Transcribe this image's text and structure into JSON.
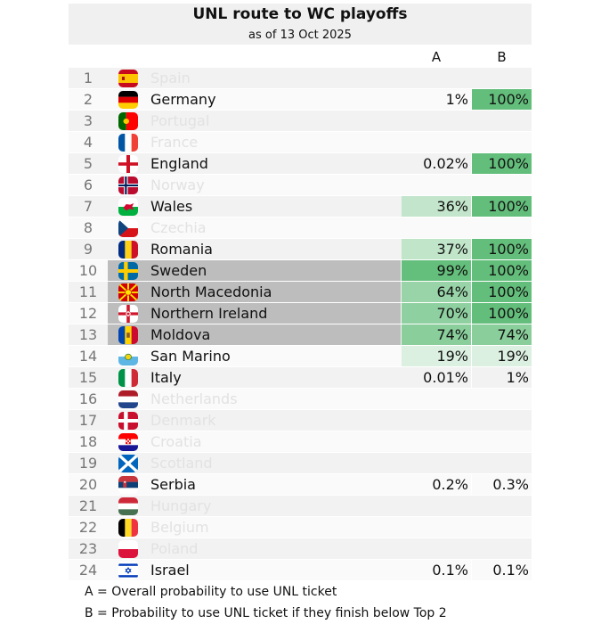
{
  "header": {
    "title": "UNL route to WC playoffs",
    "subtitle": "as of 13 Oct 2025",
    "col_a": "A",
    "col_b": "B"
  },
  "legend": {
    "a_key": "A =",
    "a_text": "Overall probability to use UNL ticket",
    "b_key": "B =",
    "b_text": "Probability to use UNL ticket if they finish below Top 2"
  },
  "colors": {
    "heat_strong": "#63be7b",
    "heat_weak": "#e8f5eb",
    "highlight": "#bdbdbd",
    "band": "#f2f2f2",
    "eliminated_text": "#e2e2e2"
  },
  "chart_data": {
    "type": "table",
    "columns": [
      "A",
      "B"
    ],
    "rows": [
      {
        "rank": "1",
        "team": "Spain",
        "flag": "spain-flag",
        "a": null,
        "b": null,
        "a_val": null,
        "b_val": null,
        "eligible": false,
        "highlight": false
      },
      {
        "rank": "2",
        "team": "Germany",
        "flag": "germany-flag",
        "a": "1%",
        "b": "100%",
        "a_val": 1,
        "b_val": 100,
        "eligible": true,
        "highlight": false
      },
      {
        "rank": "3",
        "team": "Portugal",
        "flag": "portugal-flag",
        "a": null,
        "b": null,
        "a_val": null,
        "b_val": null,
        "eligible": false,
        "highlight": false
      },
      {
        "rank": "4",
        "team": "France",
        "flag": "france-flag",
        "a": null,
        "b": null,
        "a_val": null,
        "b_val": null,
        "eligible": false,
        "highlight": false
      },
      {
        "rank": "5",
        "team": "England",
        "flag": "england-flag",
        "a": "0.02%",
        "b": "100%",
        "a_val": 0.02,
        "b_val": 100,
        "eligible": true,
        "highlight": false
      },
      {
        "rank": "6",
        "team": "Norway",
        "flag": "norway-flag",
        "a": null,
        "b": null,
        "a_val": null,
        "b_val": null,
        "eligible": false,
        "highlight": false
      },
      {
        "rank": "7",
        "team": "Wales",
        "flag": "wales-flag",
        "a": "36%",
        "b": "100%",
        "a_val": 36,
        "b_val": 100,
        "eligible": true,
        "highlight": false
      },
      {
        "rank": "8",
        "team": "Czechia",
        "flag": "czechia-flag",
        "a": null,
        "b": null,
        "a_val": null,
        "b_val": null,
        "eligible": false,
        "highlight": false
      },
      {
        "rank": "9",
        "team": "Romania",
        "flag": "romania-flag",
        "a": "37%",
        "b": "100%",
        "a_val": 37,
        "b_val": 100,
        "eligible": true,
        "highlight": false
      },
      {
        "rank": "10",
        "team": "Sweden",
        "flag": "sweden-flag",
        "a": "99%",
        "b": "100%",
        "a_val": 99,
        "b_val": 100,
        "eligible": true,
        "highlight": true
      },
      {
        "rank": "11",
        "team": "North Macedonia",
        "flag": "north-macedonia-flag",
        "a": "64%",
        "b": "100%",
        "a_val": 64,
        "b_val": 100,
        "eligible": true,
        "highlight": true
      },
      {
        "rank": "12",
        "team": "Northern Ireland",
        "flag": "northern-ireland-flag",
        "a": "70%",
        "b": "100%",
        "a_val": 70,
        "b_val": 100,
        "eligible": true,
        "highlight": true
      },
      {
        "rank": "13",
        "team": "Moldova",
        "flag": "moldova-flag",
        "a": "74%",
        "b": "74%",
        "a_val": 74,
        "b_val": 74,
        "eligible": true,
        "highlight": true
      },
      {
        "rank": "14",
        "team": "San Marino",
        "flag": "san-marino-flag",
        "a": "19%",
        "b": "19%",
        "a_val": 19,
        "b_val": 19,
        "eligible": true,
        "highlight": false
      },
      {
        "rank": "15",
        "team": "Italy",
        "flag": "italy-flag",
        "a": "0.01%",
        "b": "1%",
        "a_val": 0.01,
        "b_val": 1,
        "eligible": true,
        "highlight": false
      },
      {
        "rank": "16",
        "team": "Netherlands",
        "flag": "netherlands-flag",
        "a": null,
        "b": null,
        "a_val": null,
        "b_val": null,
        "eligible": false,
        "highlight": false
      },
      {
        "rank": "17",
        "team": "Denmark",
        "flag": "denmark-flag",
        "a": null,
        "b": null,
        "a_val": null,
        "b_val": null,
        "eligible": false,
        "highlight": false
      },
      {
        "rank": "18",
        "team": "Croatia",
        "flag": "croatia-flag",
        "a": null,
        "b": null,
        "a_val": null,
        "b_val": null,
        "eligible": false,
        "highlight": false
      },
      {
        "rank": "19",
        "team": "Scotland",
        "flag": "scotland-flag",
        "a": null,
        "b": null,
        "a_val": null,
        "b_val": null,
        "eligible": false,
        "highlight": false
      },
      {
        "rank": "20",
        "team": "Serbia",
        "flag": "serbia-flag",
        "a": "0.2%",
        "b": "0.3%",
        "a_val": 0.2,
        "b_val": 0.3,
        "eligible": true,
        "highlight": false
      },
      {
        "rank": "21",
        "team": "Hungary",
        "flag": "hungary-flag",
        "a": null,
        "b": null,
        "a_val": null,
        "b_val": null,
        "eligible": false,
        "highlight": false
      },
      {
        "rank": "22",
        "team": "Belgium",
        "flag": "belgium-flag",
        "a": null,
        "b": null,
        "a_val": null,
        "b_val": null,
        "eligible": false,
        "highlight": false
      },
      {
        "rank": "23",
        "team": "Poland",
        "flag": "poland-flag",
        "a": null,
        "b": null,
        "a_val": null,
        "b_val": null,
        "eligible": false,
        "highlight": false
      },
      {
        "rank": "24",
        "team": "Israel",
        "flag": "israel-flag",
        "a": "0.1%",
        "b": "0.1%",
        "a_val": 0.1,
        "b_val": 0.1,
        "eligible": true,
        "highlight": false
      }
    ]
  }
}
